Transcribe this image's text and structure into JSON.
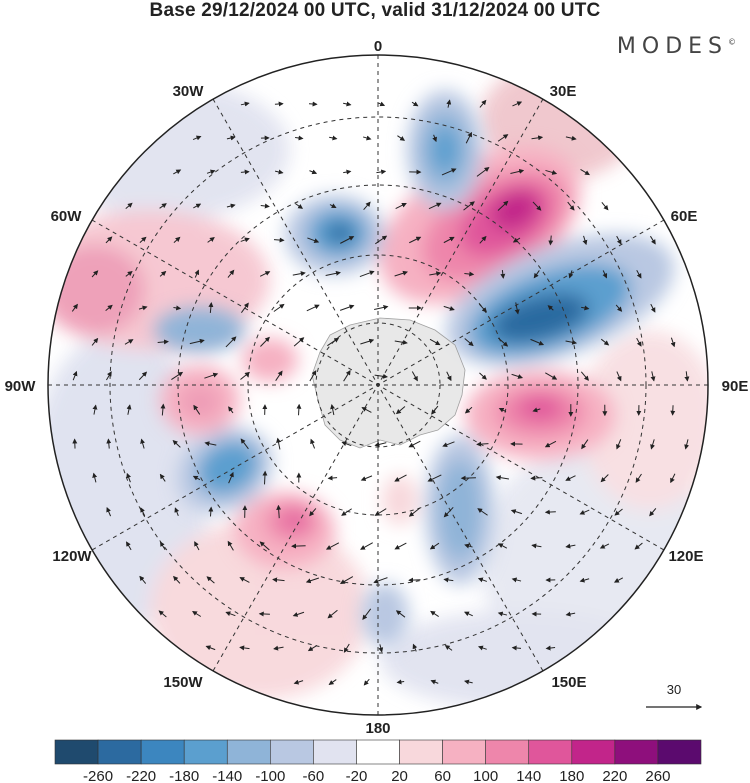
{
  "title": "Base 29/12/2024 00 UTC, valid 31/12/2024 00 UTC",
  "brand": "MODES",
  "brand_mark": "©",
  "longitude_labels": {
    "lon_0": "0",
    "lon_30e": "30E",
    "lon_60e": "60E",
    "lon_90e": "90E",
    "lon_120e": "120E",
    "lon_150e": "150E",
    "lon_180": "180",
    "lon_150w": "150W",
    "lon_120w": "120W",
    "lon_90w": "90W",
    "lon_60w": "60W",
    "lon_30w": "30W"
  },
  "reference_vector": "30",
  "colorbar": {
    "labels": [
      "-260",
      "-220",
      "-180",
      "-140",
      "-100",
      "-60",
      "-20",
      "20",
      "60",
      "100",
      "140",
      "180",
      "220",
      "260"
    ],
    "colors": [
      "#1f4a6e",
      "#2c6aa0",
      "#3c86bf",
      "#5b9fcf",
      "#8fb4d8",
      "#b9c8e2",
      "#e1e3f0",
      "#ffffff",
      "#f8d8dc",
      "#f6b1c2",
      "#ee86ab",
      "#e0569b",
      "#c2258a",
      "#8e0f7c",
      "#5b0a6e"
    ]
  },
  "anomaly_features": [
    {
      "kind": "positive",
      "color": "#c2258a"
    },
    {
      "kind": "negative",
      "color": "#3c86bf"
    }
  ]
}
